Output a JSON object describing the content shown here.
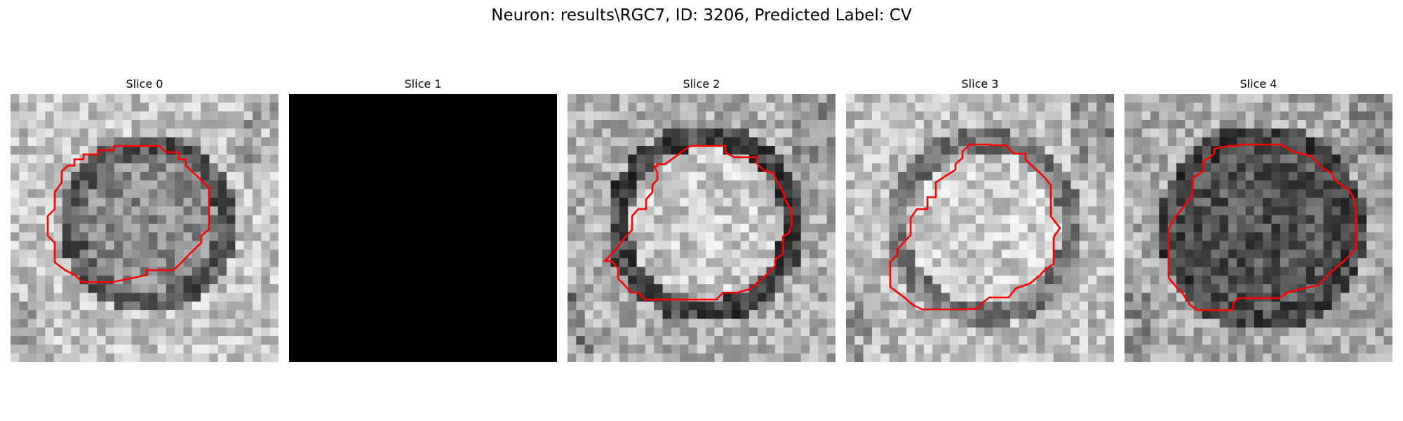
{
  "figure": {
    "title": "Neuron: results\\RGC7, ID: 3206, Predicted Label: CV"
  },
  "panels": [
    {
      "title": "Slice 0",
      "image": "grayscale-microscopy-slice",
      "blank": false,
      "outline": true
    },
    {
      "title": "Slice 1",
      "image": "black-empty-slice",
      "blank": true,
      "outline": false
    },
    {
      "title": "Slice 2",
      "image": "grayscale-microscopy-slice",
      "blank": false,
      "outline": true
    },
    {
      "title": "Slice 3",
      "image": "grayscale-microscopy-slice",
      "blank": false,
      "outline": true
    },
    {
      "title": "Slice 4",
      "image": "grayscale-microscopy-slice",
      "blank": false,
      "outline": true
    }
  ],
  "colors": {
    "outline": "#ff0000",
    "background": "#ffffff"
  }
}
